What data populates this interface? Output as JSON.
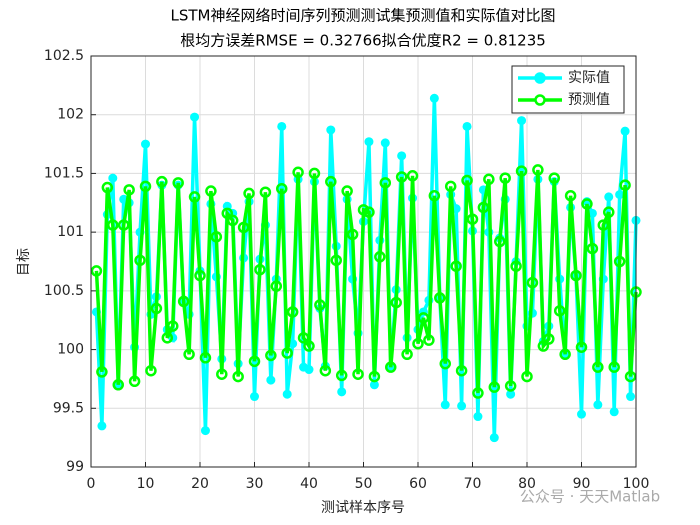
{
  "chart_data": {
    "type": "line",
    "title": "LSTM神经网络时间序列预测测试集预测值和实际值对比图",
    "subtitle": "根均方误差RMSE = 0.32766拟合优度R2 = 0.81235",
    "x_label": "测试样本序号",
    "y_label": "目标",
    "x": [
      1,
      2,
      3,
      4,
      5,
      6,
      7,
      8,
      9,
      10,
      11,
      12,
      13,
      14,
      15,
      16,
      17,
      18,
      19,
      20,
      21,
      22,
      23,
      24,
      25,
      26,
      27,
      28,
      29,
      30,
      31,
      32,
      33,
      34,
      35,
      36,
      37,
      38,
      39,
      40,
      41,
      42,
      43,
      44,
      45,
      46,
      47,
      48,
      49,
      50,
      51,
      52,
      53,
      54,
      55,
      56,
      57,
      58,
      59,
      60,
      61,
      62,
      63,
      64,
      65,
      66,
      67,
      68,
      69,
      70,
      71,
      72,
      73,
      74,
      75,
      76,
      77,
      78,
      79,
      80,
      81,
      82,
      83,
      84,
      85,
      86,
      87,
      88,
      89,
      90,
      91,
      92,
      93,
      94,
      95,
      96,
      97,
      98,
      99,
      100
    ],
    "series": [
      {
        "name": "实际值",
        "color": "#00ffff",
        "marker_filled": true,
        "values": [
          100.32,
          99.35,
          101.15,
          101.46,
          99.71,
          101.28,
          101.25,
          100.02,
          101.0,
          101.75,
          100.3,
          100.45,
          101.4,
          100.17,
          100.1,
          101.4,
          100.4,
          100.3,
          101.98,
          100.67,
          99.31,
          101.24,
          100.62,
          99.92,
          101.22,
          101.16,
          99.88,
          100.78,
          101.26,
          99.6,
          100.77,
          101.06,
          99.74,
          100.6,
          101.9,
          99.62,
          100.05,
          101.45,
          99.85,
          99.83,
          101.43,
          100.35,
          99.86,
          101.87,
          100.88,
          99.64,
          101.28,
          100.6,
          100.14,
          101.09,
          101.77,
          99.7,
          100.93,
          101.76,
          99.86,
          100.51,
          101.65,
          100.1,
          101.29,
          100.17,
          100.32,
          100.42,
          102.14,
          100.44,
          99.53,
          101.32,
          101.2,
          99.52,
          101.9,
          101.01,
          99.43,
          101.36,
          101.0,
          99.25,
          100.95,
          101.28,
          99.62,
          100.75,
          101.95,
          100.2,
          100.31,
          101.45,
          100.07,
          100.2,
          101.43,
          100.6,
          99.96,
          101.21,
          100.62,
          99.45,
          101.26,
          101.16,
          99.53,
          100.6,
          101.3,
          99.47,
          101.32,
          101.86,
          99.6,
          101.1
        ]
      },
      {
        "name": "预测值",
        "color": "#00ff00",
        "marker_filled": false,
        "values": [
          100.67,
          99.81,
          101.38,
          101.06,
          99.7,
          101.06,
          101.36,
          99.73,
          100.76,
          101.39,
          99.82,
          100.35,
          101.43,
          100.1,
          100.2,
          101.42,
          100.41,
          99.96,
          101.3,
          100.63,
          99.93,
          101.35,
          100.96,
          99.79,
          101.16,
          101.1,
          99.77,
          101.04,
          101.33,
          99.9,
          100.68,
          101.34,
          99.95,
          100.54,
          101.37,
          99.97,
          100.32,
          101.51,
          100.1,
          100.03,
          101.5,
          100.38,
          99.82,
          101.43,
          100.76,
          99.78,
          101.35,
          100.98,
          99.79,
          101.19,
          101.17,
          99.77,
          100.79,
          101.42,
          99.85,
          100.4,
          101.47,
          99.96,
          101.48,
          100.05,
          100.27,
          100.08,
          101.31,
          100.44,
          99.88,
          101.39,
          100.71,
          99.82,
          101.44,
          101.11,
          99.63,
          101.21,
          101.45,
          99.68,
          100.92,
          101.46,
          99.69,
          100.71,
          101.52,
          99.77,
          100.57,
          101.53,
          100.03,
          100.09,
          101.46,
          100.33,
          99.96,
          101.31,
          100.63,
          100.02,
          101.24,
          100.86,
          99.85,
          101.06,
          101.17,
          99.85,
          100.75,
          101.4,
          99.77,
          100.49
        ]
      }
    ],
    "xlim": [
      0,
      100
    ],
    "xticks": [
      0,
      10,
      20,
      30,
      40,
      50,
      60,
      70,
      80,
      90,
      100
    ],
    "ylim": [
      99,
      102.5
    ],
    "yticks": [
      99,
      99.5,
      100,
      100.5,
      101,
      101.5,
      102,
      102.5
    ],
    "grid": true,
    "legend": "northeast",
    "watermark": "公众号 · 天天Matlab"
  }
}
